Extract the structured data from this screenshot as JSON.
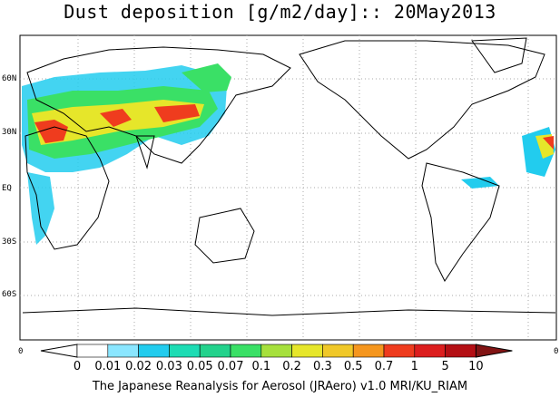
{
  "title": "Dust deposition [g/m2/day]:: 20May2013",
  "footer": "The Japanese Reanalysis for Aerosol (JRAero) v1.0 MRI/KU_RIAM",
  "lat_labels": [
    "60N",
    "30N",
    "EQ",
    "30S",
    "60S"
  ],
  "side_left": "0",
  "side_right": "0",
  "colorbar": {
    "labels": [
      "0",
      "0.01",
      "0.02",
      "0.03",
      "0.05",
      "0.07",
      "0.1",
      "0.2",
      "0.3",
      "0.5",
      "0.7",
      "1",
      "5",
      "10"
    ],
    "colors": [
      "#ffffff",
      "#ffffff",
      "#8ae6ff",
      "#22ccee",
      "#1ddcb4",
      "#23d28c",
      "#3ae066",
      "#a6e03c",
      "#e6e62a",
      "#f0c828",
      "#f5961e",
      "#ef3c1e",
      "#dc1e1e",
      "#b40f14",
      "#821414"
    ]
  },
  "map": {
    "ocean": "#ffffff",
    "coast": "#000000",
    "grid": "#aaaaaa",
    "dust_low": "#22ccee",
    "dust_mid": "#3ae066",
    "dust_high": "#e6e62a",
    "dust_peak": "#ef3c1e"
  }
}
